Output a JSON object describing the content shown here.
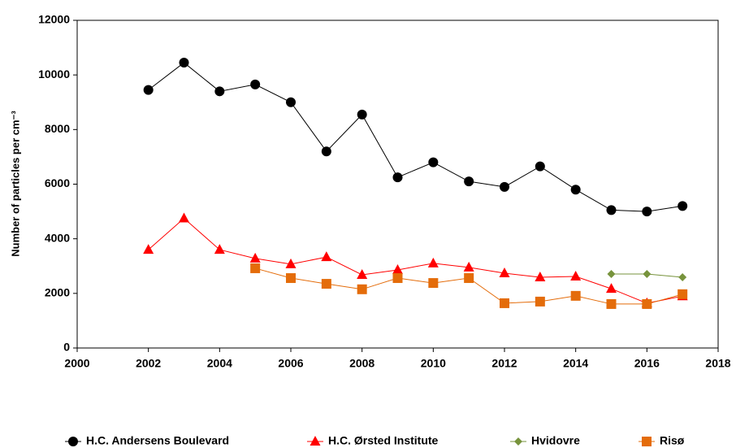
{
  "chart_data": {
    "type": "line",
    "y_label": "Number of particles per cm⁻³",
    "x": [
      2002,
      2003,
      2004,
      2005,
      2006,
      2007,
      2008,
      2009,
      2010,
      2011,
      2012,
      2013,
      2014,
      2015,
      2016,
      2017
    ],
    "series": [
      {
        "name": "H.C. Andersens Boulevard",
        "color": "#000000",
        "marker": "circle",
        "values": [
          9450,
          10450,
          9400,
          9650,
          9000,
          7200,
          8550,
          6250,
          6800,
          6100,
          5900,
          6650,
          5800,
          5050,
          5000,
          5200
        ]
      },
      {
        "name": "H.C. Ørsted Institute",
        "color": "#ff0000",
        "marker": "triangle",
        "values": [
          3600,
          4750,
          3600,
          3280,
          3070,
          3330,
          2680,
          2860,
          3100,
          2950,
          2740,
          2590,
          2620,
          2170,
          1640,
          1900
        ]
      },
      {
        "name": "Hvidovre",
        "color": "#77933c",
        "marker": "diamond",
        "values": [
          null,
          null,
          null,
          null,
          null,
          null,
          null,
          null,
          null,
          null,
          null,
          null,
          null,
          2710,
          2710,
          2590
        ]
      },
      {
        "name": "Risø",
        "color": "#e46c0a",
        "marker": "square",
        "values": [
          null,
          null,
          null,
          2920,
          2560,
          2350,
          2150,
          2560,
          2380,
          2560,
          1640,
          1700,
          1910,
          1610,
          1610,
          1970
        ]
      }
    ],
    "xlim": [
      2000,
      2018
    ],
    "xticks": [
      2000,
      2002,
      2004,
      2006,
      2008,
      2010,
      2012,
      2014,
      2016,
      2018
    ],
    "ylim": [
      0,
      12000
    ],
    "yticks": [
      0,
      2000,
      4000,
      6000,
      8000,
      10000,
      12000
    ],
    "grid": false,
    "legend": "bottom"
  }
}
